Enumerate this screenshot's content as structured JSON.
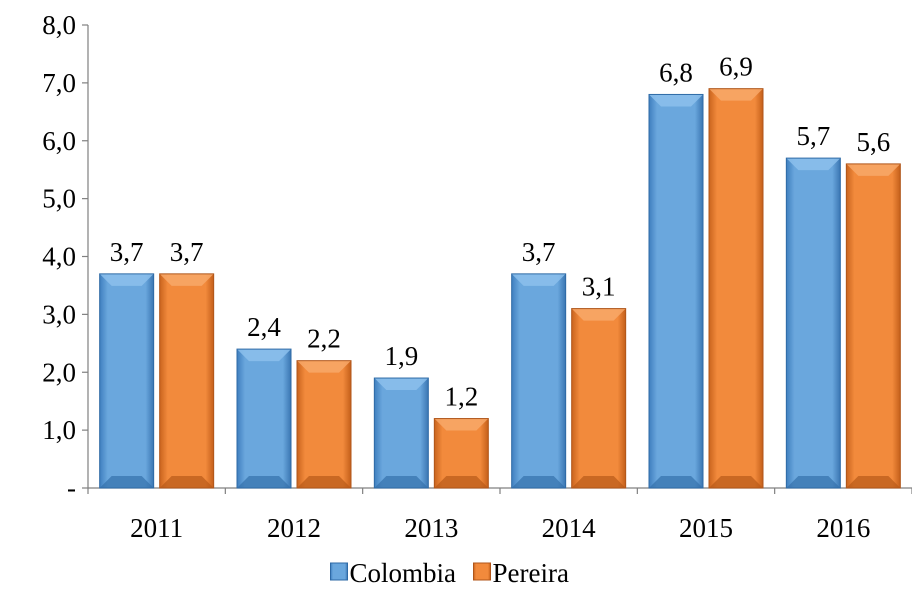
{
  "chart_data": {
    "type": "bar",
    "title": "",
    "xlabel": "",
    "ylabel": "",
    "categories": [
      "2011",
      "2012",
      "2013",
      "2014",
      "2015",
      "2016"
    ],
    "series": [
      {
        "name": "Colombia",
        "values": [
          3.7,
          2.4,
          1.9,
          3.7,
          6.8,
          5.7
        ],
        "value_labels": [
          "3,7",
          "2,4",
          "1,9",
          "3,7",
          "6,8",
          "5,7"
        ],
        "color": "#5b9bd5"
      },
      {
        "name": "Pereira",
        "values": [
          3.7,
          2.2,
          1.2,
          3.1,
          6.9,
          5.6
        ],
        "value_labels": [
          "3,7",
          "2,2",
          "1,2",
          "3,1",
          "6,9",
          "5,6"
        ],
        "color": "#ed7d31"
      }
    ],
    "ylim": [
      0,
      8
    ],
    "yticks": [
      0,
      1,
      2,
      3,
      4,
      5,
      6,
      7,
      8
    ],
    "ytick_labels": [
      "-",
      "1,0",
      "2,0",
      "3,0",
      "4,0",
      "5,0",
      "6,0",
      "7,0",
      "8,0"
    ],
    "grid": false,
    "legend_position": "bottom"
  }
}
